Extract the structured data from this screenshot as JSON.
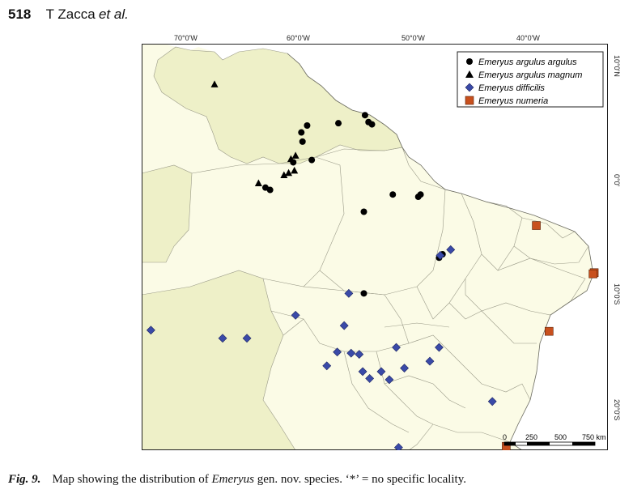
{
  "header": {
    "page_number": "518",
    "authors": "T Zacca",
    "et_al": "et al."
  },
  "longitude_labels": [
    "70°0'W",
    "60°0'W",
    "50°0'W",
    "40°0'W"
  ],
  "latitude_labels": [
    "10°0'N",
    "0°0'",
    "10°0'S",
    "20°0'S"
  ],
  "legend": [
    {
      "label": "Emeryus argulus argulus",
      "symbol": "circle",
      "color": "#000000"
    },
    {
      "label": "Emeryus argulus magnum",
      "symbol": "triangle",
      "color": "#000000"
    },
    {
      "label": "Emeryus difficilis",
      "symbol": "diamond",
      "color": "#3a4aa8"
    },
    {
      "label": "Emeryus numeria",
      "symbol": "square",
      "color": "#c8501e"
    }
  ],
  "scale_bar": {
    "labels": [
      "0",
      "250",
      "500",
      "750 km"
    ]
  },
  "caption": {
    "fig_label": "Fig. 9.",
    "text_before": "Map showing the distribution of ",
    "genus": "Emeryus",
    "text_after": " gen. nov. species. ‘*’ = no specific locality."
  },
  "records": {
    "argulus_argulus": [
      [
        -54.9,
        5.9
      ],
      [
        -54.6,
        5.3
      ],
      [
        -54.3,
        5.1
      ],
      [
        -57.2,
        5.2
      ],
      [
        -59.9,
        5.0
      ],
      [
        -60.4,
        4.4
      ],
      [
        -60.3,
        3.6
      ],
      [
        -59.5,
        2.0
      ],
      [
        -61.1,
        1.8
      ],
      [
        -63.5,
        -0.4
      ],
      [
        -63.1,
        -0.6
      ],
      [
        -52.5,
        -1.0
      ],
      [
        -50.1,
        -1.0
      ],
      [
        -50.3,
        -1.2
      ],
      [
        -55.0,
        -2.5
      ],
      [
        -48.5,
        -6.5
      ],
      [
        -48.2,
        -6.2
      ],
      [
        -55.0,
        -9.6
      ]
    ],
    "argulus_magnum": [
      [
        -67.9,
        8.6
      ],
      [
        -61.3,
        2.1
      ],
      [
        -60.9,
        2.4
      ],
      [
        -61.0,
        1.1
      ],
      [
        -61.5,
        0.9
      ],
      [
        -61.9,
        0.7
      ],
      [
        -64.1,
        0.0
      ]
    ],
    "difficilis": [
      [
        -47.5,
        -5.8
      ],
      [
        -48.4,
        -6.3
      ],
      [
        -56.3,
        -9.6
      ],
      [
        -60.9,
        -11.5
      ],
      [
        -56.7,
        -12.4
      ],
      [
        -73.4,
        -12.8
      ],
      [
        -67.2,
        -13.5
      ],
      [
        -65.1,
        -13.5
      ],
      [
        -52.2,
        -14.3
      ],
      [
        -48.5,
        -14.3
      ],
      [
        -57.3,
        -14.7
      ],
      [
        -56.1,
        -14.8
      ],
      [
        -55.4,
        -14.9
      ],
      [
        -49.3,
        -15.5
      ],
      [
        -58.2,
        -15.9
      ],
      [
        -51.5,
        -16.1
      ],
      [
        -55.1,
        -16.4
      ],
      [
        -53.5,
        -16.4
      ],
      [
        -54.5,
        -17.0
      ],
      [
        -52.8,
        -17.1
      ],
      [
        -43.9,
        -19.0
      ],
      [
        -52.0,
        -23.0
      ]
    ],
    "numeria": [
      [
        -40.1,
        -3.7
      ],
      [
        -35.1,
        -7.8
      ],
      [
        -35.2,
        -7.9
      ],
      [
        -39.0,
        -12.9
      ],
      [
        -42.7,
        -22.9
      ]
    ]
  }
}
